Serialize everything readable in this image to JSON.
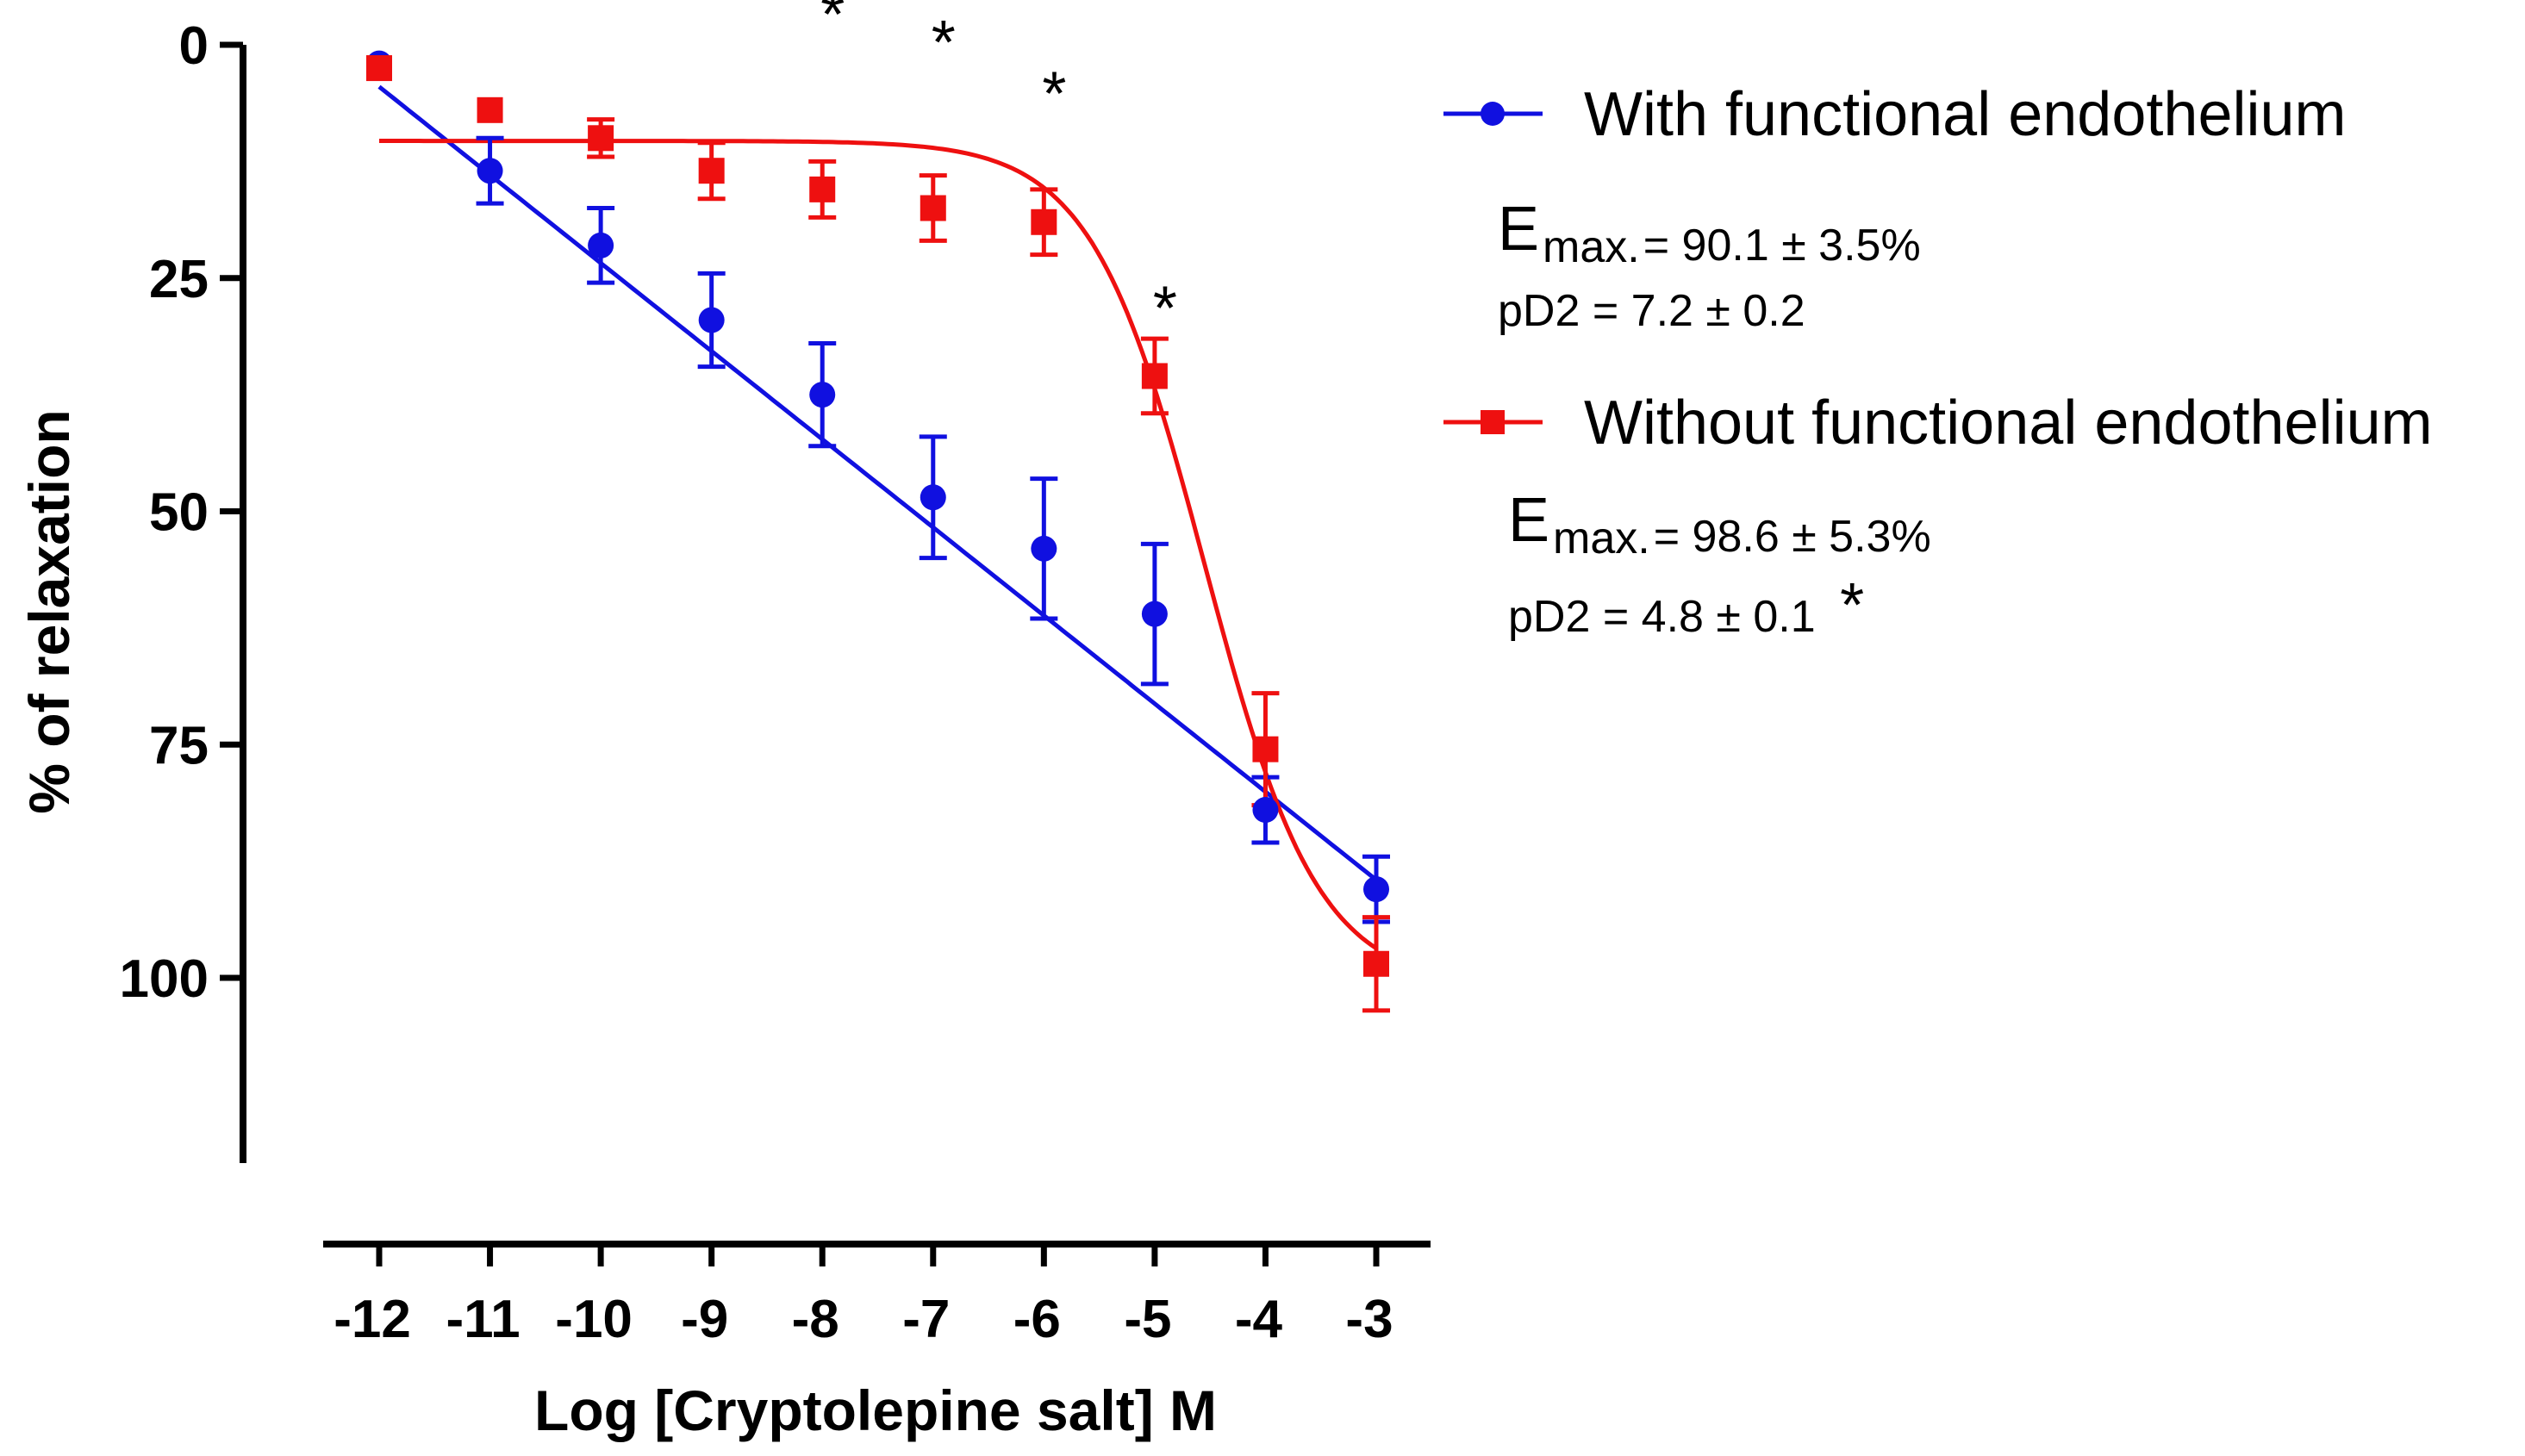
{
  "chart_data": {
    "type": "line",
    "xlabel": "Log [Cryptolepine salt] M",
    "ylabel": "% of relaxation",
    "xlim": [
      -12,
      -3
    ],
    "ylim": [
      0,
      120
    ],
    "y_inverted": true,
    "x_ticks": [
      -12,
      -11,
      -10,
      -9,
      -8,
      -7,
      -6,
      -5,
      -4,
      -3
    ],
    "x_tick_labels": [
      "-12",
      "-11",
      "-10",
      "-9",
      "-8",
      "-7",
      "-6",
      "-5",
      "-4",
      "-3"
    ],
    "y_ticks": [
      0,
      25,
      50,
      75,
      100
    ],
    "y_tick_labels": [
      "0",
      "25",
      "50",
      "75",
      "100"
    ],
    "grid": false,
    "legend_position": "top-right",
    "series": [
      {
        "name": "With functional endothelium",
        "color": "#1010e0",
        "marker": "circle",
        "x": [
          -12,
          -11,
          -10,
          -9,
          -8,
          -7,
          -6,
          -5,
          -4,
          -3
        ],
        "y": [
          2,
          13.5,
          21.5,
          29.5,
          37.5,
          48.5,
          54,
          61,
          82,
          90.5
        ],
        "err": [
          0,
          3.5,
          4,
          5,
          5.5,
          6.5,
          7.5,
          7.5,
          3.5,
          3.5
        ],
        "fit": {
          "model": "linear",
          "y_at_min": 4.5,
          "y_at_max": 89.5
        },
        "stats": {
          "emax_label": "E",
          "emax_sub": "max.",
          "emax_value": "= 90.1 ±  3.5%",
          "pd2": "pD2 =  7.2 ± 0.2"
        }
      },
      {
        "name": "Without functional endothelium",
        "color": "#ee1010",
        "marker": "square",
        "x": [
          -12,
          -11,
          -10,
          -9,
          -8,
          -7,
          -6,
          -5,
          -4,
          -3
        ],
        "y": [
          2.5,
          7,
          10,
          13.5,
          15.5,
          17.5,
          19,
          35.5,
          75.5,
          98.5
        ],
        "err": [
          0,
          0,
          2,
          3,
          3,
          3.5,
          3.5,
          4,
          6,
          5
        ],
        "fit": {
          "model": "sigmoid",
          "bottom": 10.3,
          "top": 101,
          "logEC50": -4.55,
          "hill": 0.85
        },
        "stats": {
          "emax_label": "E",
          "emax_sub": "max.",
          "emax_value": "= 98.6 ±  5.3%",
          "pd2": "pD2 =  4.8 ± 0.1",
          "pd2_mark": "*"
        }
      }
    ],
    "annotations": [
      {
        "text": "*",
        "x": -8,
        "y": -4.5
      },
      {
        "text": "*",
        "x": -7,
        "y": -1.5
      },
      {
        "text": "*",
        "x": -6,
        "y": 4
      },
      {
        "text": "*",
        "x": -5,
        "y": 27
      }
    ]
  }
}
